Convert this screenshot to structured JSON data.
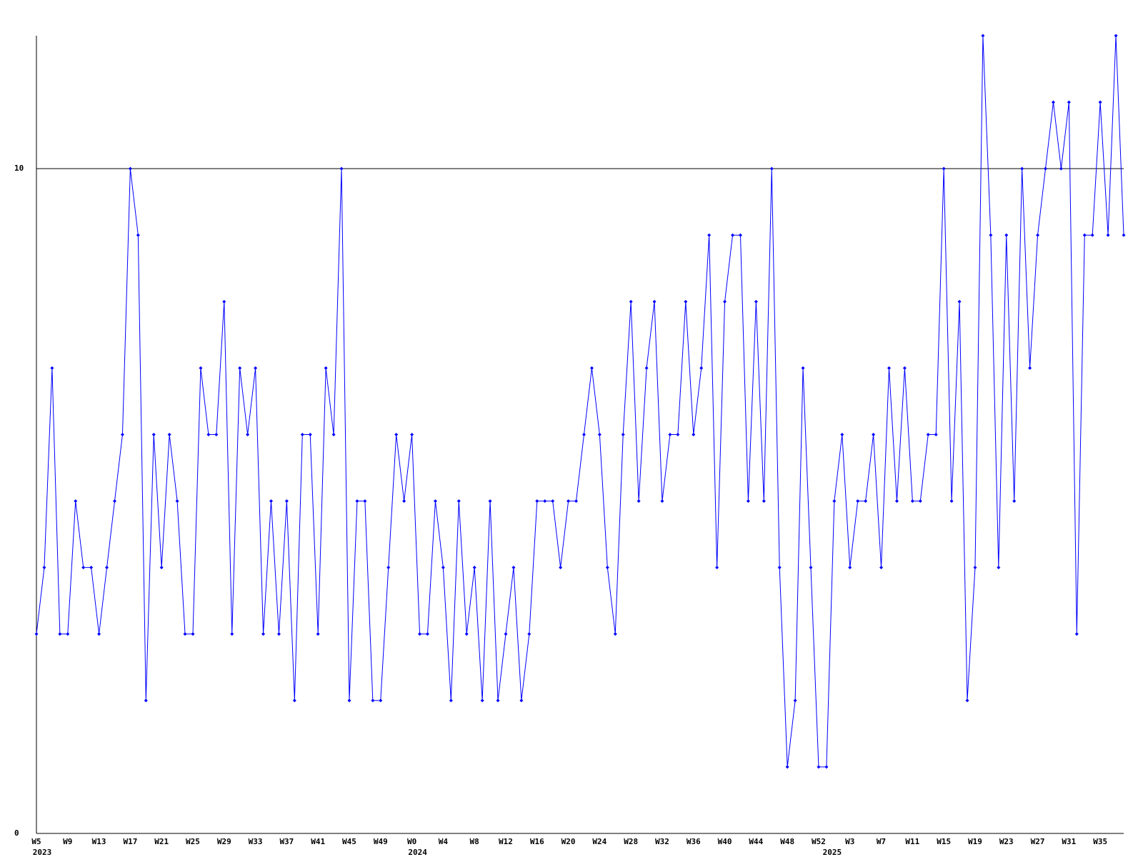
{
  "chart_data": {
    "type": "line",
    "categories": [
      "W5",
      null,
      null,
      null,
      "W9",
      null,
      null,
      null,
      "W13",
      null,
      null,
      null,
      "W17",
      null,
      null,
      null,
      "W21",
      null,
      null,
      null,
      "W25",
      null,
      null,
      null,
      "W29",
      null,
      null,
      null,
      "W33",
      null,
      null,
      null,
      "W37",
      null,
      null,
      null,
      "W41",
      null,
      null,
      null,
      "W45",
      null,
      null,
      null,
      "W49",
      null,
      null,
      null,
      "W0",
      null,
      null,
      null,
      "W4",
      null,
      null,
      null,
      "W8",
      null,
      null,
      null,
      "W12",
      null,
      null,
      null,
      "W16",
      null,
      null,
      null,
      "W20",
      null,
      null,
      null,
      "W24",
      null,
      null,
      null,
      "W28",
      null,
      null,
      null,
      "W32",
      null,
      null,
      null,
      "W36",
      null,
      null,
      null,
      "W40",
      null,
      null,
      null,
      "W44",
      null,
      null,
      null,
      "W48",
      null,
      null,
      null,
      "W52",
      null,
      null,
      null,
      "W3",
      null,
      null,
      null,
      "W7",
      null,
      null,
      null,
      "W11",
      null,
      null,
      null,
      "W15",
      null,
      null,
      null,
      "W19",
      null,
      null,
      null,
      "W23",
      null,
      null,
      null,
      "W27",
      null,
      null,
      null,
      "W31",
      null,
      null,
      null,
      "W35",
      null,
      null,
      null
    ],
    "years": [
      "2023",
      null,
      null,
      null,
      null,
      null,
      null,
      null,
      null,
      null,
      null,
      null,
      null,
      null,
      null,
      null,
      null,
      null,
      null,
      null,
      null,
      null,
      null,
      null,
      null,
      null,
      null,
      null,
      null,
      null,
      null,
      null,
      null,
      null,
      null,
      null,
      null,
      null,
      null,
      null,
      null,
      null,
      null,
      null,
      null,
      null,
      null,
      null,
      "2024",
      null,
      null,
      null,
      null,
      null,
      null,
      null,
      null,
      null,
      null,
      null,
      null,
      null,
      null,
      null,
      null,
      null,
      null,
      null,
      null,
      null,
      null,
      null,
      null,
      null,
      null,
      null,
      null,
      null,
      null,
      null,
      null,
      null,
      null,
      null,
      null,
      null,
      null,
      null,
      null,
      null,
      null,
      null,
      null,
      null,
      null,
      null,
      null,
      null,
      null,
      null,
      null,
      "2025",
      null,
      null,
      null,
      null,
      null,
      null,
      null,
      null,
      null,
      null,
      null,
      null,
      null,
      null,
      null,
      null,
      null,
      null,
      null,
      null,
      null,
      null,
      null,
      null,
      null,
      null,
      null,
      null,
      null,
      null,
      null,
      null,
      null,
      null,
      null,
      null,
      null
    ],
    "values": [
      3,
      4,
      7,
      3,
      3,
      5,
      4,
      4,
      3,
      4,
      5,
      6,
      10,
      9,
      2,
      6,
      4,
      6,
      5,
      3,
      3,
      7,
      6,
      6,
      8,
      3,
      7,
      6,
      7,
      3,
      5,
      3,
      5,
      2,
      6,
      6,
      3,
      7,
      6,
      10,
      2,
      5,
      5,
      2,
      2,
      4,
      6,
      5,
      6,
      3,
      3,
      5,
      4,
      2,
      5,
      3,
      4,
      2,
      5,
      2,
      3,
      4,
      2,
      3,
      5,
      5,
      5,
      4,
      5,
      5,
      6,
      7,
      6,
      4,
      3,
      6,
      8,
      5,
      7,
      8,
      5,
      6,
      6,
      8,
      6,
      7,
      9,
      4,
      8,
      9,
      9,
      5,
      8,
      5,
      10,
      4,
      1,
      2,
      7,
      4,
      1,
      1,
      5,
      6,
      4,
      5,
      5,
      6,
      4,
      7,
      5,
      7,
      5,
      5,
      6,
      6,
      10,
      5,
      8,
      2,
      4,
      12,
      9,
      4,
      9,
      5,
      10,
      7,
      9,
      10,
      11,
      10,
      11,
      3,
      9,
      9,
      11,
      9,
      12,
      9
    ],
    "color": "#0000ff",
    "ylim": [
      0,
      12
    ],
    "yticks": [
      0,
      10
    ],
    "grid": true
  }
}
